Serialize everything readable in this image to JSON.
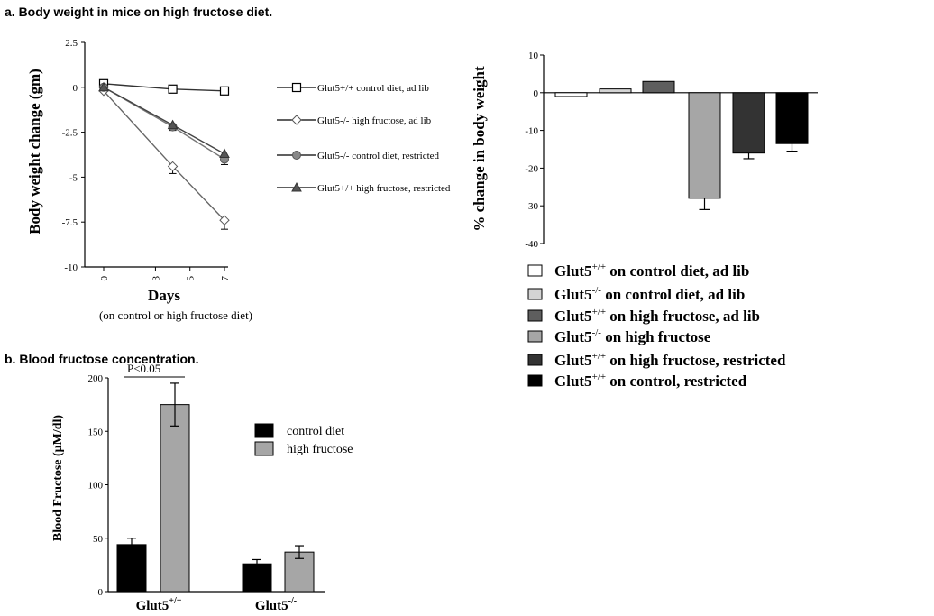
{
  "titles": {
    "a": "a. Body weight in mice on high fructose diet.",
    "b": "b. Blood fructose concentration."
  },
  "chart_data": [
    {
      "type": "line",
      "ylabel": "Body weight change (gm)",
      "xlabel": "Days",
      "xlabel_sub": "(on control or high fructose diet)",
      "ylim": [
        -10,
        2.5
      ],
      "y_ticks": [
        2.5,
        0,
        -2.5,
        -5,
        -7.5,
        -10
      ],
      "y_tick_labels": [
        "2.5",
        "0",
        "-2.5",
        "-5",
        "-7.5",
        "-10"
      ],
      "xlim": [
        0,
        7
      ],
      "x_ticks": [
        0,
        3,
        5,
        7
      ],
      "x_tick_labels": [
        "0",
        "3",
        "5",
        "7"
      ],
      "series": [
        {
          "name": "Glut5+/+ control diet, ad lib",
          "marker": "square",
          "x": [
            0,
            4,
            7
          ],
          "y": [
            0.2,
            -0.1,
            -0.2
          ],
          "err": [
            0,
            0,
            0
          ]
        },
        {
          "name": "Glut5-/- high fructose, ad lib",
          "marker": "diamond",
          "x": [
            0,
            4,
            7
          ],
          "y": [
            -0.2,
            -4.4,
            -7.4
          ],
          "err": [
            0,
            0.4,
            0.5
          ]
        },
        {
          "name": "Glut5-/- control diet, restricted",
          "marker": "circle",
          "x": [
            0,
            4,
            7
          ],
          "y": [
            0,
            -2.2,
            -4.0
          ],
          "err": [
            0,
            0.2,
            0.3
          ]
        },
        {
          "name": "Glut5+/+ high fructose, restricted",
          "marker": "triangle",
          "x": [
            0,
            4,
            7
          ],
          "y": [
            0,
            -2.1,
            -3.7
          ],
          "err": [
            0,
            0.2,
            0.2
          ]
        }
      ]
    },
    {
      "type": "bar",
      "ylabel": "% change in body weight",
      "ylim": [
        -40,
        10
      ],
      "y_ticks": [
        10,
        0,
        -10,
        -20,
        -30,
        -40
      ],
      "y_tick_labels": [
        "10",
        "0",
        "-10",
        "-20",
        "-30",
        "-40"
      ],
      "legend": [
        {
          "base": "Glut5",
          "sup": "+/+",
          "rest": " on control diet, ad lib",
          "color": "#ffffff"
        },
        {
          "base": "Glut5",
          "sup": "-/-",
          "rest": " on control diet, ad lib",
          "color": "#d4d4d4"
        },
        {
          "base": "Glut5",
          "sup": "+/+",
          "rest": " on high fructose, ad lib",
          "color": "#5e5e5e"
        },
        {
          "base": "Glut5",
          "sup": "-/-",
          "rest": " on high fructose",
          "color": "#a6a6a6"
        },
        {
          "base": "Glut5",
          "sup": "+/+",
          "rest": " on high fructose, restricted",
          "color": "#333333"
        },
        {
          "base": "Glut5",
          "sup": "+/+",
          "rest": " on control, restricted",
          "color": "#000000"
        }
      ],
      "values": [
        -1,
        1,
        3,
        -28,
        -16,
        -13.5
      ],
      "errors": [
        0,
        0,
        0,
        3,
        1.5,
        2
      ]
    },
    {
      "type": "bar",
      "ylabel": "Blood Fructose (μM/dl)",
      "ylim": [
        0,
        200
      ],
      "y_ticks": [
        0,
        50,
        100,
        150,
        200
      ],
      "y_tick_labels": [
        "0",
        "50",
        "100",
        "150",
        "200"
      ],
      "categories": [
        {
          "base": "Glut5",
          "sup": "+/+"
        },
        {
          "base": "Glut5",
          "sup": "-/-"
        }
      ],
      "series": [
        {
          "name": "control diet",
          "color": "#000000",
          "values": [
            44,
            26
          ],
          "errors": [
            6,
            4
          ]
        },
        {
          "name": "high fructose",
          "color": "#a6a6a6",
          "values": [
            175,
            37
          ],
          "errors": [
            20,
            6
          ]
        }
      ],
      "annotation": "P<0.05"
    }
  ]
}
